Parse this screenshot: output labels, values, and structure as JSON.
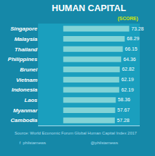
{
  "chart_data": {
    "type": "bar",
    "orientation": "horizontal",
    "title": "HUMAN CAPITAL",
    "categories": [
      "Singapore",
      "Malaysia",
      "Thailand",
      "Philippines",
      "Brunei",
      "Vietnam",
      "Indonesia",
      "Laos",
      "Myanmar",
      "Cambodia"
    ],
    "values": [
      73.28,
      68.29,
      66.15,
      64.36,
      62.82,
      62.19,
      62.19,
      58.36,
      57.67,
      57.28
    ],
    "color": "#8ed8d8",
    "xlim": [
      -28,
      85
    ],
    "grid": false,
    "data_labels": true,
    "tick_labels": "y",
    "annotations": [
      "(SCORE)",
      "Source: World Economic Forum Global Human Capital Index 2017",
      "f  philstarnews",
      "@philstarnews"
    ]
  }
}
